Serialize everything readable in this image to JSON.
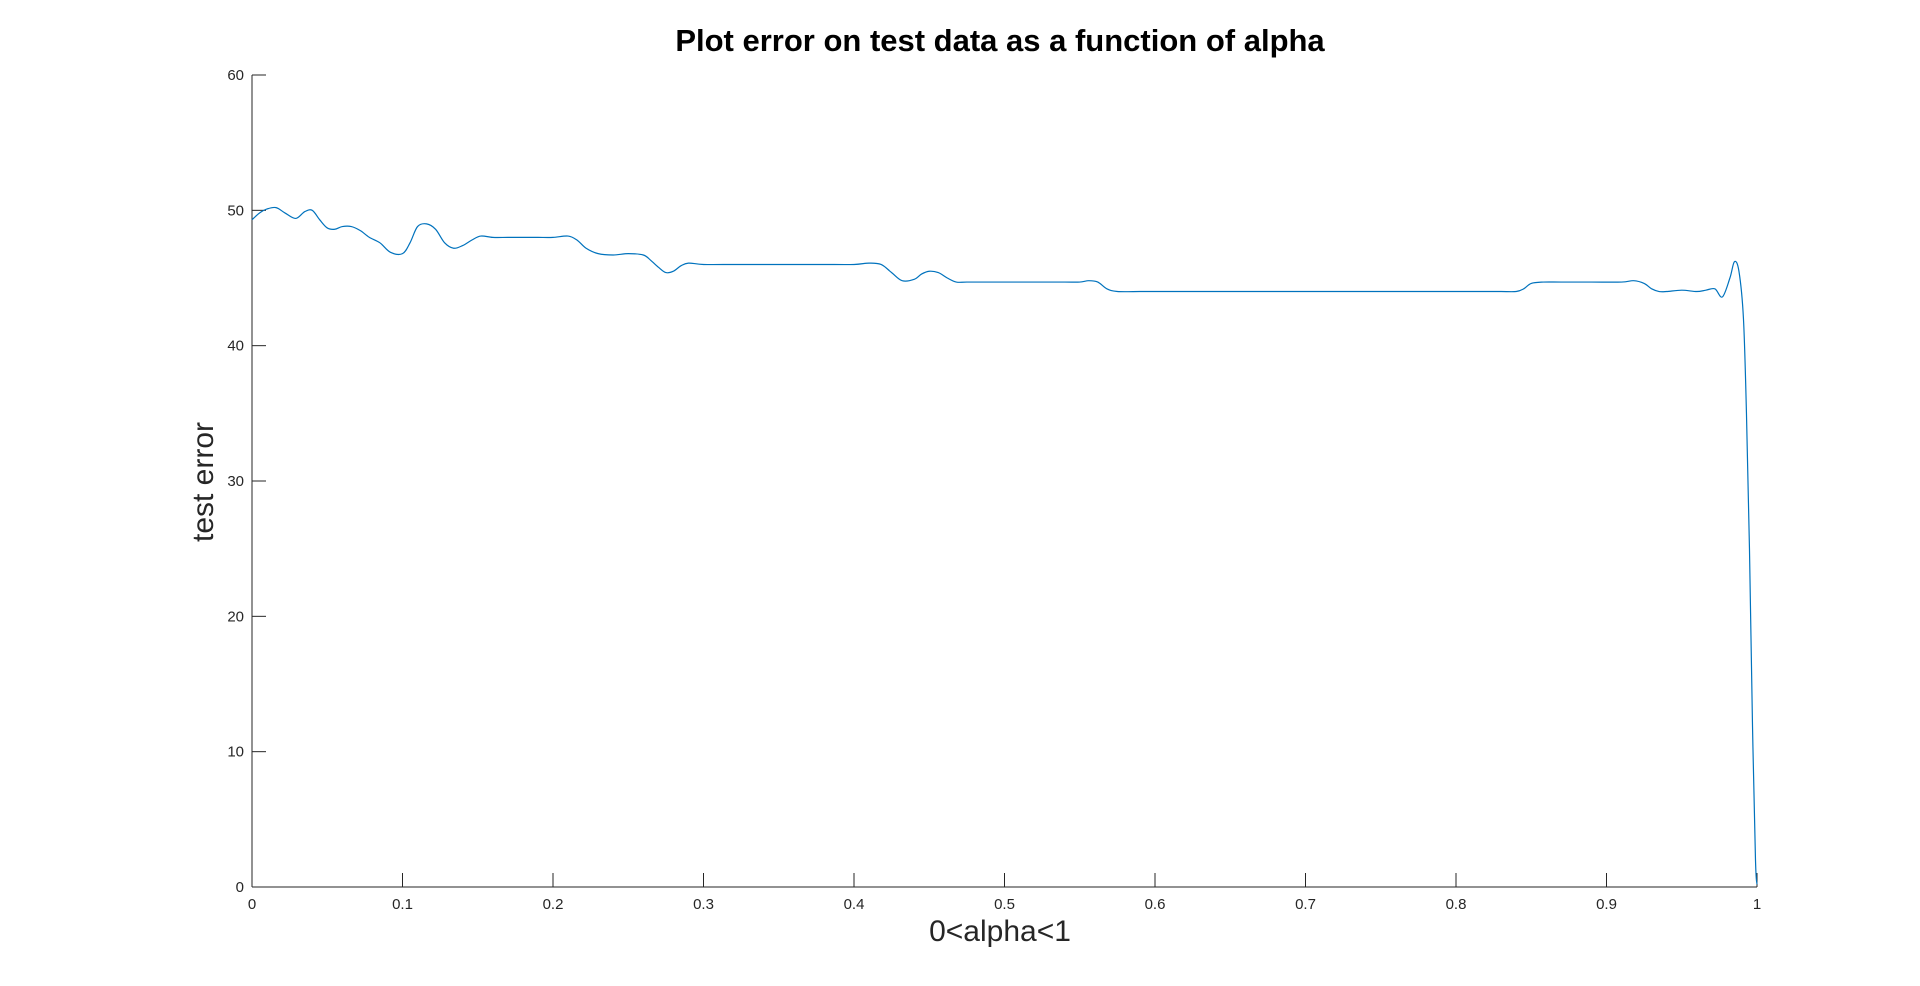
{
  "chart_data": {
    "type": "line",
    "title": "Plot error on test data as a function of alpha",
    "xlabel": "0<alpha<1",
    "ylabel": "test error",
    "xlim": [
      0,
      1
    ],
    "ylim": [
      0,
      60
    ],
    "x_ticks": [
      0,
      0.1,
      0.2,
      0.3,
      0.4,
      0.5,
      0.6,
      0.7,
      0.8,
      0.9,
      1
    ],
    "x_tick_labels": [
      "0",
      "0.1",
      "0.2",
      "0.3",
      "0.4",
      "0.5",
      "0.6",
      "0.7",
      "0.8",
      "0.9",
      "1"
    ],
    "y_ticks": [
      0,
      10,
      20,
      30,
      40,
      50,
      60
    ],
    "y_tick_labels": [
      "0",
      "10",
      "20",
      "30",
      "40",
      "50",
      "60"
    ],
    "grid": false,
    "line_color": "#0072BD",
    "series": [
      {
        "x": [
          0,
          0.005,
          0.01,
          0.016,
          0.022,
          0.029,
          0.035,
          0.04,
          0.045,
          0.05,
          0.055,
          0.06,
          0.066,
          0.072,
          0.078,
          0.085,
          0.092,
          0.1,
          0.105,
          0.11,
          0.116,
          0.122,
          0.128,
          0.134,
          0.14,
          0.146,
          0.152,
          0.16,
          0.17,
          0.18,
          0.19,
          0.2,
          0.21,
          0.216,
          0.222,
          0.23,
          0.24,
          0.25,
          0.26,
          0.265,
          0.27,
          0.275,
          0.28,
          0.285,
          0.29,
          0.3,
          0.32,
          0.34,
          0.36,
          0.38,
          0.4,
          0.41,
          0.418,
          0.425,
          0.432,
          0.44,
          0.445,
          0.45,
          0.456,
          0.462,
          0.468,
          0.475,
          0.49,
          0.5,
          0.52,
          0.54,
          0.55,
          0.556,
          0.562,
          0.568,
          0.575,
          0.59,
          0.6,
          0.65,
          0.7,
          0.75,
          0.8,
          0.82,
          0.83,
          0.84,
          0.845,
          0.85,
          0.858,
          0.87,
          0.89,
          0.91,
          0.918,
          0.925,
          0.93,
          0.935,
          0.94,
          0.95,
          0.96,
          0.966,
          0.972,
          0.977,
          0.982,
          0.985,
          0.988,
          0.991,
          0.993,
          0.995,
          0.997,
          0.999,
          1
        ],
        "y": [
          49.3,
          49.8,
          50.1,
          50.2,
          49.8,
          49.4,
          49.9,
          50.0,
          49.3,
          48.7,
          48.6,
          48.8,
          48.8,
          48.5,
          48.0,
          47.6,
          46.9,
          46.8,
          47.6,
          48.8,
          49.0,
          48.6,
          47.6,
          47.2,
          47.4,
          47.8,
          48.1,
          48.0,
          48.0,
          48.0,
          48.0,
          48.0,
          48.1,
          47.8,
          47.2,
          46.8,
          46.7,
          46.8,
          46.7,
          46.3,
          45.8,
          45.4,
          45.5,
          45.9,
          46.1,
          46.0,
          46.0,
          46.0,
          46.0,
          46.0,
          46.0,
          46.1,
          46.0,
          45.4,
          44.8,
          44.9,
          45.3,
          45.5,
          45.4,
          45.0,
          44.7,
          44.7,
          44.7,
          44.7,
          44.7,
          44.7,
          44.7,
          44.8,
          44.7,
          44.2,
          44.0,
          44.0,
          44.0,
          44.0,
          44.0,
          44.0,
          44.0,
          44.0,
          44.0,
          44.0,
          44.2,
          44.6,
          44.7,
          44.7,
          44.7,
          44.7,
          44.8,
          44.6,
          44.2,
          44.0,
          44.0,
          44.1,
          44.0,
          44.1,
          44.2,
          43.6,
          45.0,
          46.2,
          45.5,
          42.0,
          35.0,
          25.0,
          12.0,
          2.0,
          0.2
        ]
      }
    ]
  }
}
